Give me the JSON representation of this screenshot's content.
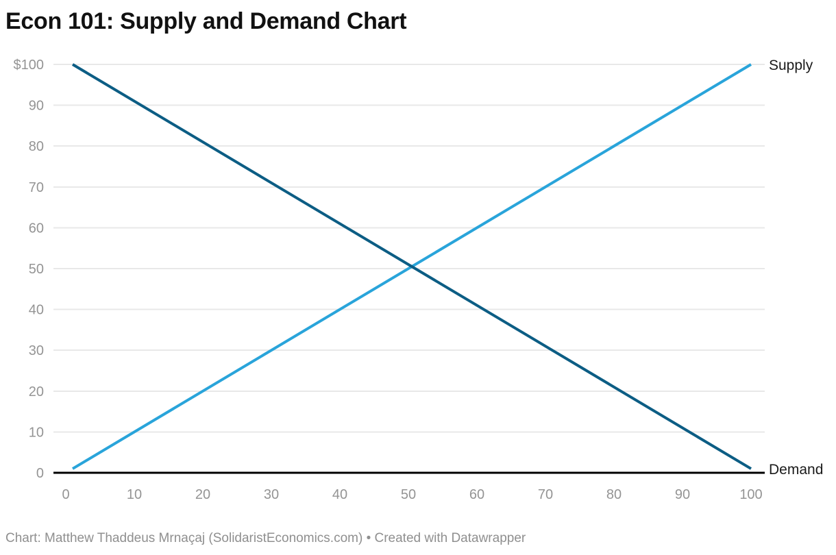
{
  "header": {
    "title": "Econ 101: Supply and Demand Chart"
  },
  "footer": {
    "attribution": "Chart: Matthew Thaddeus Mrnaçaj (SolidaristEconomics.com) • Created with Datawrapper"
  },
  "chart_data": {
    "type": "line",
    "title": "Econ 101: Supply and Demand Chart",
    "xlabel": "",
    "ylabel": "",
    "xlim": [
      0,
      100
    ],
    "ylim": [
      0,
      100
    ],
    "x_ticks": [
      0,
      10,
      20,
      30,
      40,
      50,
      60,
      70,
      80,
      90,
      100
    ],
    "x_tick_labels": [
      "0",
      "10",
      "20",
      "30",
      "40",
      "50",
      "60",
      "70",
      "80",
      "90",
      "100"
    ],
    "y_ticks": [
      0,
      10,
      20,
      30,
      40,
      50,
      60,
      70,
      80,
      90,
      100
    ],
    "y_tick_labels": [
      "0",
      "10",
      "20",
      "30",
      "40",
      "50",
      "60",
      "70",
      "80",
      "90",
      "$100"
    ],
    "grid": "horizontal-only",
    "legend_position": "line-end-labels-right",
    "series": [
      {
        "name": "Supply",
        "color": "#29a4da",
        "points": [
          [
            1,
            1
          ],
          [
            100,
            100
          ]
        ]
      },
      {
        "name": "Demand",
        "color": "#0c5d84",
        "points": [
          [
            1,
            100
          ],
          [
            100,
            1
          ]
        ]
      }
    ],
    "equilibrium": {
      "x": 50,
      "y": 50
    },
    "colors": {
      "grid": "#e8e8e8",
      "axis": "#000000",
      "tick_labels": "#949494",
      "series_labels": "#1a1a1a",
      "title": "#111111",
      "footer": "#8f8f8f"
    }
  }
}
